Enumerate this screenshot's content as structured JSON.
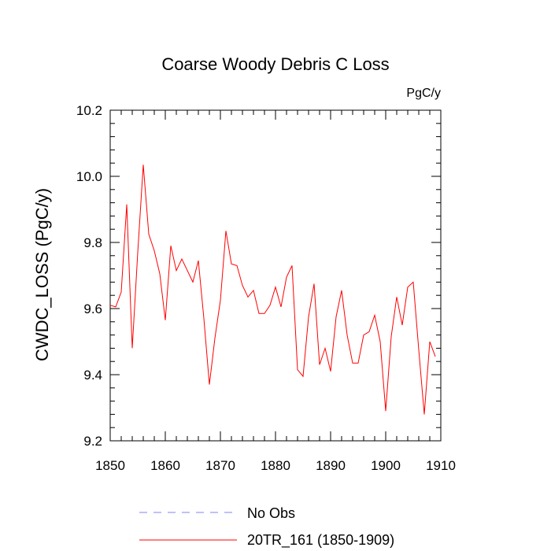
{
  "chart_data": {
    "type": "line",
    "title": "Coarse Woody Debris C Loss",
    "units_label": "PgC/y",
    "ylabel": "CWDC_LOSS  (PgC/y)",
    "xlabel": "",
    "xlim": [
      1850,
      1910
    ],
    "ylim": [
      9.2,
      10.2
    ],
    "x_ticks": [
      1850,
      1860,
      1870,
      1880,
      1890,
      1900,
      1910
    ],
    "y_ticks": [
      9.2,
      9.4,
      9.6,
      9.8,
      10.0,
      10.2
    ],
    "x_tick_labels": [
      "1850",
      "1860",
      "1870",
      "1880",
      "1890",
      "1900",
      "1910"
    ],
    "y_tick_labels": [
      "9.2",
      "9.4",
      "9.6",
      "9.8",
      "10.0",
      "10.2"
    ],
    "grid": false,
    "legend_position": "bottom",
    "legend": [
      {
        "label": "No Obs",
        "color": "#8080ff",
        "style": "dashed"
      },
      {
        "label": "20TR_161 (1850-1909)",
        "color": "#ff0000",
        "style": "solid"
      }
    ],
    "series": [
      {
        "name": "20TR_161 (1850-1909)",
        "color": "#ff0000",
        "x": [
          1850,
          1851,
          1852,
          1853,
          1854,
          1855,
          1856,
          1857,
          1858,
          1859,
          1860,
          1861,
          1862,
          1863,
          1864,
          1865,
          1866,
          1867,
          1868,
          1869,
          1870,
          1871,
          1872,
          1873,
          1874,
          1875,
          1876,
          1877,
          1878,
          1879,
          1880,
          1881,
          1882,
          1883,
          1884,
          1885,
          1886,
          1887,
          1888,
          1889,
          1890,
          1891,
          1892,
          1893,
          1894,
          1895,
          1896,
          1897,
          1898,
          1899,
          1900,
          1901,
          1902,
          1903,
          1904,
          1905,
          1906,
          1907,
          1908,
          1909
        ],
        "values": [
          9.61,
          9.605,
          9.65,
          9.915,
          9.48,
          9.77,
          10.035,
          9.825,
          9.775,
          9.705,
          9.565,
          9.79,
          9.715,
          9.75,
          9.715,
          9.68,
          9.745,
          9.57,
          9.37,
          9.51,
          9.625,
          9.835,
          9.735,
          9.73,
          9.67,
          9.635,
          9.655,
          9.585,
          9.585,
          9.61,
          9.665,
          9.605,
          9.695,
          9.73,
          9.415,
          9.395,
          9.575,
          9.675,
          9.43,
          9.48,
          9.41,
          9.575,
          9.655,
          9.52,
          9.435,
          9.435,
          9.52,
          9.53,
          9.58,
          9.5,
          9.29,
          9.515,
          9.635,
          9.55,
          9.665,
          9.68,
          9.475,
          9.28,
          9.5,
          9.455
        ]
      }
    ]
  }
}
